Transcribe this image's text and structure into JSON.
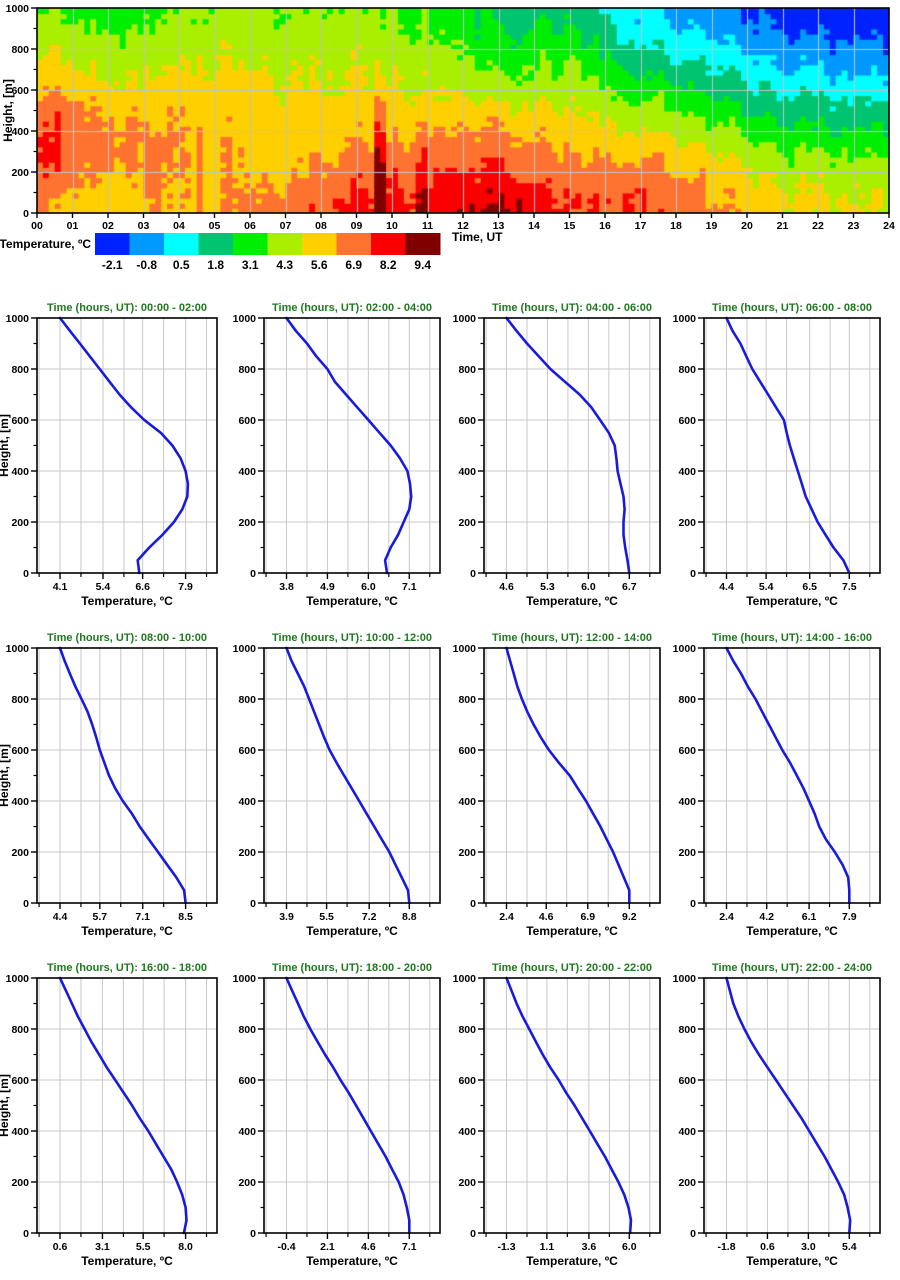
{
  "page": {
    "background": "#ffffff"
  },
  "chart_data": {
    "heatmap": {
      "type": "heatmap",
      "xlabel": "Time, UT",
      "ylabel": "Height, [m]",
      "x_range": [
        0,
        24
      ],
      "y_range": [
        0,
        1000
      ],
      "x_tick_labels": [
        "00",
        "01",
        "02",
        "03",
        "04",
        "05",
        "06",
        "07",
        "08",
        "09",
        "10",
        "11",
        "12",
        "13",
        "14",
        "15",
        "16",
        "17",
        "18",
        "19",
        "20",
        "21",
        "22",
        "23",
        "24"
      ],
      "y_ticks": [
        0,
        200,
        400,
        600,
        800,
        1000
      ],
      "grid": true,
      "legend": {
        "label": "Temperature, ºC",
        "position": "bottom-left",
        "levels": [
          -2.1,
          -0.8,
          0.5,
          1.8,
          3.1,
          4.3,
          5.6,
          6.9,
          8.2,
          9.4
        ],
        "colors": [
          "#0022ff",
          "#0099ff",
          "#00ffff",
          "#00c470",
          "#00ee00",
          "#aaee00",
          "#ffd000",
          "#ff7330",
          "#fa0000",
          "#800000"
        ]
      },
      "field_source": "profiles",
      "time_window_centers": [
        1,
        3,
        5,
        7,
        9,
        11,
        13,
        15,
        17,
        19,
        21,
        23
      ],
      "plumes": [
        {
          "t": 9.72,
          "hw": 0.14,
          "htop": 730,
          "amp": 2.2
        },
        {
          "t": 10.85,
          "hw": 0.16,
          "htop": 520,
          "amp": 1.0
        },
        {
          "t": 4.55,
          "hw": 0.13,
          "htop": 470,
          "amp": 0.8
        },
        {
          "t": 3.3,
          "hw": 0.13,
          "htop": 430,
          "amp": 0.7
        },
        {
          "t": 13.6,
          "hw": 0.1,
          "htop": 140,
          "amp": 0.8
        },
        {
          "t": 16.85,
          "hw": 0.35,
          "htop": 230,
          "amp": 0.7
        },
        {
          "t": 0.18,
          "hw": 0.14,
          "htop": 440,
          "amp": 0.6
        }
      ]
    },
    "profiles": {
      "type": "line",
      "xlabel": "Temperature, ºC",
      "ylabel": "Height, [m]",
      "title_prefix": "Time (hours, UT): ",
      "line_color": "#1a1ade",
      "y_ticks": [
        0,
        200,
        400,
        600,
        800,
        1000
      ],
      "ylim": [
        0,
        1000
      ],
      "heights_m": [
        0,
        50,
        100,
        150,
        200,
        250,
        300,
        350,
        400,
        450,
        500,
        550,
        600,
        650,
        700,
        750,
        800,
        850,
        900,
        950,
        1000
      ],
      "subplots": [
        {
          "time_range": "00:00 - 02:00",
          "x_ticks": [
            4.1,
            5.4,
            6.6,
            7.9
          ],
          "temps": [
            6.5,
            6.45,
            6.8,
            7.2,
            7.55,
            7.8,
            7.95,
            7.97,
            7.9,
            7.75,
            7.5,
            7.15,
            6.65,
            6.25,
            5.9,
            5.6,
            5.3,
            5.0,
            4.7,
            4.4,
            4.1
          ]
        },
        {
          "time_range": "02:00 - 04:00",
          "x_ticks": [
            3.8,
            4.9,
            6.0,
            7.1
          ],
          "temps": [
            6.5,
            6.45,
            6.6,
            6.8,
            6.95,
            7.1,
            7.15,
            7.12,
            7.05,
            6.85,
            6.6,
            6.3,
            6.0,
            5.7,
            5.4,
            5.1,
            4.9,
            4.6,
            4.35,
            4.05,
            3.8
          ]
        },
        {
          "time_range": "04:00 - 06:00",
          "x_ticks": [
            4.6,
            5.3,
            6.0,
            6.7
          ],
          "temps": [
            6.7,
            6.67,
            6.63,
            6.6,
            6.6,
            6.62,
            6.6,
            6.55,
            6.5,
            6.48,
            6.45,
            6.35,
            6.2,
            6.05,
            5.85,
            5.6,
            5.35,
            5.15,
            4.95,
            4.77,
            4.6
          ]
        },
        {
          "time_range": "06:00 - 08:00",
          "x_ticks": [
            4.4,
            5.4,
            6.5,
            7.5
          ],
          "temps": [
            7.5,
            7.35,
            7.1,
            6.9,
            6.7,
            6.55,
            6.4,
            6.3,
            6.2,
            6.1,
            6.0,
            5.92,
            5.85,
            5.65,
            5.45,
            5.25,
            5.05,
            4.9,
            4.75,
            4.55,
            4.4
          ]
        },
        {
          "time_range": "08:00 - 10:00",
          "x_ticks": [
            4.4,
            5.7,
            7.1,
            8.5
          ],
          "temps": [
            8.5,
            8.45,
            8.2,
            7.9,
            7.6,
            7.3,
            7.0,
            6.75,
            6.45,
            6.2,
            6.0,
            5.85,
            5.7,
            5.58,
            5.45,
            5.3,
            5.1,
            4.9,
            4.72,
            4.55,
            4.4
          ]
        },
        {
          "time_range": "10:00 - 12:00",
          "x_ticks": [
            3.9,
            5.5,
            7.2,
            8.8
          ],
          "temps": [
            8.8,
            8.75,
            8.5,
            8.25,
            8.0,
            7.7,
            7.4,
            7.1,
            6.8,
            6.5,
            6.2,
            5.9,
            5.62,
            5.4,
            5.2,
            5.0,
            4.8,
            4.6,
            4.35,
            4.1,
            3.9
          ]
        },
        {
          "time_range": "12:00 - 14:00",
          "x_ticks": [
            2.4,
            4.6,
            6.9,
            9.2
          ],
          "temps": [
            9.2,
            9.2,
            8.9,
            8.6,
            8.3,
            7.95,
            7.6,
            7.2,
            6.8,
            6.35,
            5.9,
            5.3,
            4.75,
            4.3,
            3.9,
            3.55,
            3.25,
            3.0,
            2.8,
            2.6,
            2.4
          ]
        },
        {
          "time_range": "14:00 - 16:00",
          "x_ticks": [
            2.4,
            4.2,
            6.1,
            7.9
          ],
          "temps": [
            7.9,
            7.9,
            7.85,
            7.6,
            7.25,
            6.85,
            6.55,
            6.35,
            6.1,
            5.85,
            5.55,
            5.25,
            4.9,
            4.6,
            4.3,
            4.0,
            3.7,
            3.35,
            3.05,
            2.7,
            2.4
          ]
        },
        {
          "time_range": "16:00 - 18:00",
          "x_ticks": [
            0.6,
            3.1,
            5.5,
            8.0
          ],
          "temps": [
            7.9,
            8.05,
            8.0,
            7.8,
            7.5,
            7.15,
            6.7,
            6.25,
            5.8,
            5.3,
            4.85,
            4.35,
            3.85,
            3.35,
            2.9,
            2.45,
            2.05,
            1.65,
            1.3,
            0.95,
            0.6
          ]
        },
        {
          "time_range": "18:00 - 20:00",
          "x_ticks": [
            -0.4,
            2.1,
            4.6,
            7.1
          ],
          "temps": [
            7.1,
            7.1,
            6.95,
            6.75,
            6.45,
            6.05,
            5.65,
            5.2,
            4.75,
            4.3,
            3.85,
            3.4,
            2.9,
            2.45,
            1.95,
            1.5,
            1.05,
            0.65,
            0.3,
            -0.05,
            -0.4
          ]
        },
        {
          "time_range": "20:00 - 22:00",
          "x_ticks": [
            -1.3,
            1.1,
            3.6,
            6.0
          ],
          "temps": [
            6.05,
            6.1,
            5.95,
            5.7,
            5.35,
            4.95,
            4.55,
            4.1,
            3.65,
            3.2,
            2.75,
            2.25,
            1.8,
            1.3,
            0.85,
            0.45,
            0.05,
            -0.35,
            -0.7,
            -1.0,
            -1.3
          ]
        },
        {
          "time_range": "22:00 - 24:00",
          "x_ticks": [
            -1.8,
            0.6,
            3.0,
            5.4
          ],
          "temps": [
            5.4,
            5.45,
            5.3,
            5.1,
            4.75,
            4.35,
            3.95,
            3.5,
            3.05,
            2.6,
            2.1,
            1.6,
            1.1,
            0.6,
            0.1,
            -0.35,
            -0.75,
            -1.1,
            -1.4,
            -1.6,
            -1.8
          ]
        }
      ]
    }
  },
  "style_tokens": {
    "title_color": "#1e7a1e",
    "grid_color": "#c9c9c9",
    "heatmap_grid_color": "#bcc4cc",
    "frame_color": "#000000",
    "text_color": "#000000"
  }
}
